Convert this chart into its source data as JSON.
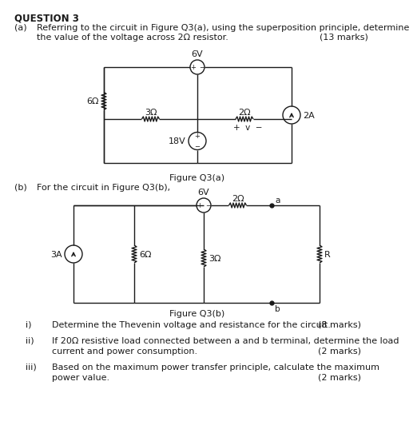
{
  "title": "QUESTION 3",
  "part_a_label": "(a)",
  "part_a_text1": "Referring to the circuit in Figure Q3(a), using the superposition principle, determine",
  "part_a_text2": "the value of the voltage across 2Ω resistor.",
  "part_a_marks": "(13 marks)",
  "fig_a_caption": "Figure Q3(a)",
  "part_b_label": "(b)",
  "part_b_text": "For the circuit in Figure Q3(b),",
  "fig_b_caption": "Figure Q3(b)",
  "sub_i_label": "i)",
  "sub_i_text": "Determine the Thevenin voltage and resistance for the circuit.",
  "sub_i_marks": "(8 marks)",
  "sub_ii_label": "ii)",
  "sub_ii_text1": "If 20Ω resistive load connected between a and b terminal, determine the load",
  "sub_ii_text2": "current and power consumption.",
  "sub_ii_marks": "(2 marks)",
  "sub_iii_label": "iii)",
  "sub_iii_text1": "Based on the maximum power transfer principle, calculate the maximum",
  "sub_iii_text2": "power value.",
  "sub_iii_marks": "(2 marks)",
  "bg_color": "#ffffff",
  "text_color": "#1a1a1a",
  "line_color": "#1a1a1a"
}
